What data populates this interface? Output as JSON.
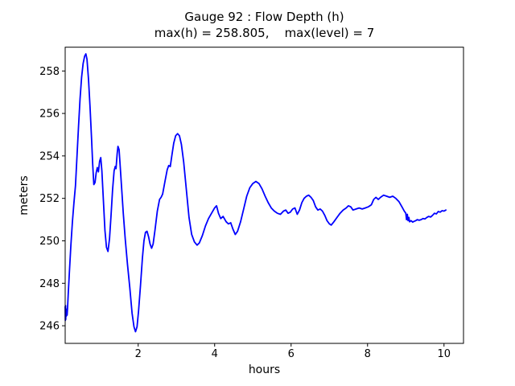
{
  "figure": {
    "title": "Gauge 92 : Flow Depth (h)",
    "subtitle": "max(h) = 258.805,    max(level) = 7"
  },
  "chart_data": {
    "type": "line",
    "title": "Gauge 92 : Flow Depth (h)",
    "subtitle": "max(h) = 258.805,    max(level) = 7",
    "xlabel": "hours",
    "ylabel": "meters",
    "xlim": [
      0.09,
      10.51
    ],
    "ylim": [
      245.17,
      259.12
    ],
    "xticks": [
      2,
      4,
      6,
      8,
      10
    ],
    "yticks": [
      246,
      248,
      250,
      252,
      254,
      256,
      258
    ],
    "grid": false,
    "legend": false,
    "line_color": "#0000ff",
    "axis_color": "#000000",
    "max_h": 258.805,
    "max_level": 7,
    "series": [
      {
        "name": "flow-depth-h",
        "points": [
          [
            0.09,
            246.9
          ],
          [
            0.095,
            246.25
          ],
          [
            0.1,
            246.95
          ],
          [
            0.105,
            246.3
          ],
          [
            0.11,
            246.8
          ],
          [
            0.12,
            246.45
          ],
          [
            0.13,
            246.75
          ],
          [
            0.14,
            246.5
          ],
          [
            0.15,
            246.8
          ],
          [
            0.17,
            247.5
          ],
          [
            0.2,
            248.5
          ],
          [
            0.24,
            249.8
          ],
          [
            0.28,
            250.9
          ],
          [
            0.32,
            251.8
          ],
          [
            0.36,
            252.6
          ],
          [
            0.4,
            254.0
          ],
          [
            0.44,
            255.4
          ],
          [
            0.48,
            256.7
          ],
          [
            0.52,
            257.7
          ],
          [
            0.56,
            258.35
          ],
          [
            0.6,
            258.7
          ],
          [
            0.63,
            258.805
          ],
          [
            0.66,
            258.55
          ],
          [
            0.7,
            257.6
          ],
          [
            0.74,
            256.3
          ],
          [
            0.78,
            254.8
          ],
          [
            0.81,
            253.6
          ],
          [
            0.84,
            252.65
          ],
          [
            0.87,
            252.75
          ],
          [
            0.9,
            253.2
          ],
          [
            0.93,
            253.45
          ],
          [
            0.96,
            253.25
          ],
          [
            0.99,
            253.75
          ],
          [
            1.02,
            253.92
          ],
          [
            1.05,
            253.3
          ],
          [
            1.09,
            251.9
          ],
          [
            1.13,
            250.5
          ],
          [
            1.17,
            249.7
          ],
          [
            1.21,
            249.5
          ],
          [
            1.25,
            250.1
          ],
          [
            1.29,
            251.2
          ],
          [
            1.33,
            252.4
          ],
          [
            1.37,
            253.3
          ],
          [
            1.4,
            253.5
          ],
          [
            1.42,
            253.4
          ],
          [
            1.45,
            254.1
          ],
          [
            1.47,
            254.45
          ],
          [
            1.5,
            254.3
          ],
          [
            1.53,
            253.5
          ],
          [
            1.57,
            252.4
          ],
          [
            1.61,
            251.3
          ],
          [
            1.66,
            250.1
          ],
          [
            1.72,
            248.9
          ],
          [
            1.78,
            247.8
          ],
          [
            1.84,
            246.6
          ],
          [
            1.89,
            245.95
          ],
          [
            1.93,
            245.72
          ],
          [
            1.97,
            245.95
          ],
          [
            2.01,
            246.7
          ],
          [
            2.06,
            247.9
          ],
          [
            2.11,
            249.2
          ],
          [
            2.15,
            250.0
          ],
          [
            2.19,
            250.4
          ],
          [
            2.23,
            250.45
          ],
          [
            2.27,
            250.2
          ],
          [
            2.31,
            249.85
          ],
          [
            2.35,
            249.65
          ],
          [
            2.39,
            249.85
          ],
          [
            2.44,
            250.5
          ],
          [
            2.5,
            251.4
          ],
          [
            2.56,
            251.95
          ],
          [
            2.6,
            252.05
          ],
          [
            2.64,
            252.2
          ],
          [
            2.7,
            252.8
          ],
          [
            2.76,
            253.35
          ],
          [
            2.8,
            253.55
          ],
          [
            2.84,
            253.5
          ],
          [
            2.88,
            254.0
          ],
          [
            2.93,
            254.6
          ],
          [
            2.98,
            254.95
          ],
          [
            3.03,
            255.05
          ],
          [
            3.08,
            254.95
          ],
          [
            3.13,
            254.55
          ],
          [
            3.19,
            253.7
          ],
          [
            3.26,
            252.4
          ],
          [
            3.33,
            251.1
          ],
          [
            3.4,
            250.3
          ],
          [
            3.47,
            249.95
          ],
          [
            3.54,
            249.8
          ],
          [
            3.6,
            249.9
          ],
          [
            3.68,
            250.25
          ],
          [
            3.76,
            250.7
          ],
          [
            3.84,
            251.05
          ],
          [
            3.92,
            251.3
          ],
          [
            4.0,
            251.55
          ],
          [
            4.05,
            251.65
          ],
          [
            4.1,
            251.3
          ],
          [
            4.16,
            251.05
          ],
          [
            4.22,
            251.15
          ],
          [
            4.3,
            250.9
          ],
          [
            4.36,
            250.8
          ],
          [
            4.42,
            250.85
          ],
          [
            4.48,
            250.55
          ],
          [
            4.54,
            250.3
          ],
          [
            4.6,
            250.45
          ],
          [
            4.68,
            250.9
          ],
          [
            4.76,
            251.5
          ],
          [
            4.84,
            252.1
          ],
          [
            4.92,
            252.5
          ],
          [
            5.0,
            252.7
          ],
          [
            5.08,
            252.8
          ],
          [
            5.16,
            252.7
          ],
          [
            5.24,
            252.45
          ],
          [
            5.32,
            252.1
          ],
          [
            5.4,
            251.8
          ],
          [
            5.48,
            251.55
          ],
          [
            5.56,
            251.4
          ],
          [
            5.64,
            251.3
          ],
          [
            5.72,
            251.25
          ],
          [
            5.8,
            251.4
          ],
          [
            5.86,
            251.45
          ],
          [
            5.92,
            251.3
          ],
          [
            5.98,
            251.35
          ],
          [
            6.04,
            251.5
          ],
          [
            6.1,
            251.55
          ],
          [
            6.16,
            251.25
          ],
          [
            6.22,
            251.45
          ],
          [
            6.28,
            251.8
          ],
          [
            6.34,
            252.0
          ],
          [
            6.4,
            252.1
          ],
          [
            6.46,
            252.15
          ],
          [
            6.52,
            252.05
          ],
          [
            6.58,
            251.9
          ],
          [
            6.64,
            251.6
          ],
          [
            6.7,
            251.45
          ],
          [
            6.76,
            251.5
          ],
          [
            6.82,
            251.4
          ],
          [
            6.88,
            251.2
          ],
          [
            6.94,
            250.95
          ],
          [
            7.0,
            250.8
          ],
          [
            7.05,
            250.74
          ],
          [
            7.12,
            250.9
          ],
          [
            7.2,
            251.1
          ],
          [
            7.28,
            251.3
          ],
          [
            7.36,
            251.45
          ],
          [
            7.44,
            251.55
          ],
          [
            7.5,
            251.65
          ],
          [
            7.56,
            251.6
          ],
          [
            7.62,
            251.45
          ],
          [
            7.7,
            251.5
          ],
          [
            7.78,
            251.55
          ],
          [
            7.86,
            251.5
          ],
          [
            7.94,
            251.55
          ],
          [
            8.02,
            251.6
          ],
          [
            8.1,
            251.7
          ],
          [
            8.16,
            251.95
          ],
          [
            8.22,
            252.05
          ],
          [
            8.28,
            251.95
          ],
          [
            8.34,
            252.05
          ],
          [
            8.42,
            252.15
          ],
          [
            8.5,
            252.1
          ],
          [
            8.58,
            252.05
          ],
          [
            8.66,
            252.1
          ],
          [
            8.74,
            252.0
          ],
          [
            8.82,
            251.85
          ],
          [
            8.9,
            251.6
          ],
          [
            8.96,
            251.4
          ],
          [
            9.0,
            251.3
          ],
          [
            9.02,
            251.0
          ],
          [
            9.04,
            251.25
          ],
          [
            9.06,
            250.95
          ],
          [
            9.08,
            251.1
          ],
          [
            9.1,
            250.9
          ],
          [
            9.14,
            250.95
          ],
          [
            9.18,
            250.88
          ],
          [
            9.22,
            250.92
          ],
          [
            9.26,
            250.95
          ],
          [
            9.3,
            251.0
          ],
          [
            9.35,
            250.97
          ],
          [
            9.4,
            251.0
          ],
          [
            9.45,
            251.05
          ],
          [
            9.5,
            251.03
          ],
          [
            9.55,
            251.1
          ],
          [
            9.6,
            251.15
          ],
          [
            9.65,
            251.12
          ],
          [
            9.7,
            251.2
          ],
          [
            9.75,
            251.3
          ],
          [
            9.8,
            251.27
          ],
          [
            9.85,
            251.38
          ],
          [
            9.9,
            251.35
          ],
          [
            9.95,
            251.42
          ],
          [
            10.0,
            251.4
          ],
          [
            10.05,
            251.45
          ]
        ]
      }
    ]
  }
}
